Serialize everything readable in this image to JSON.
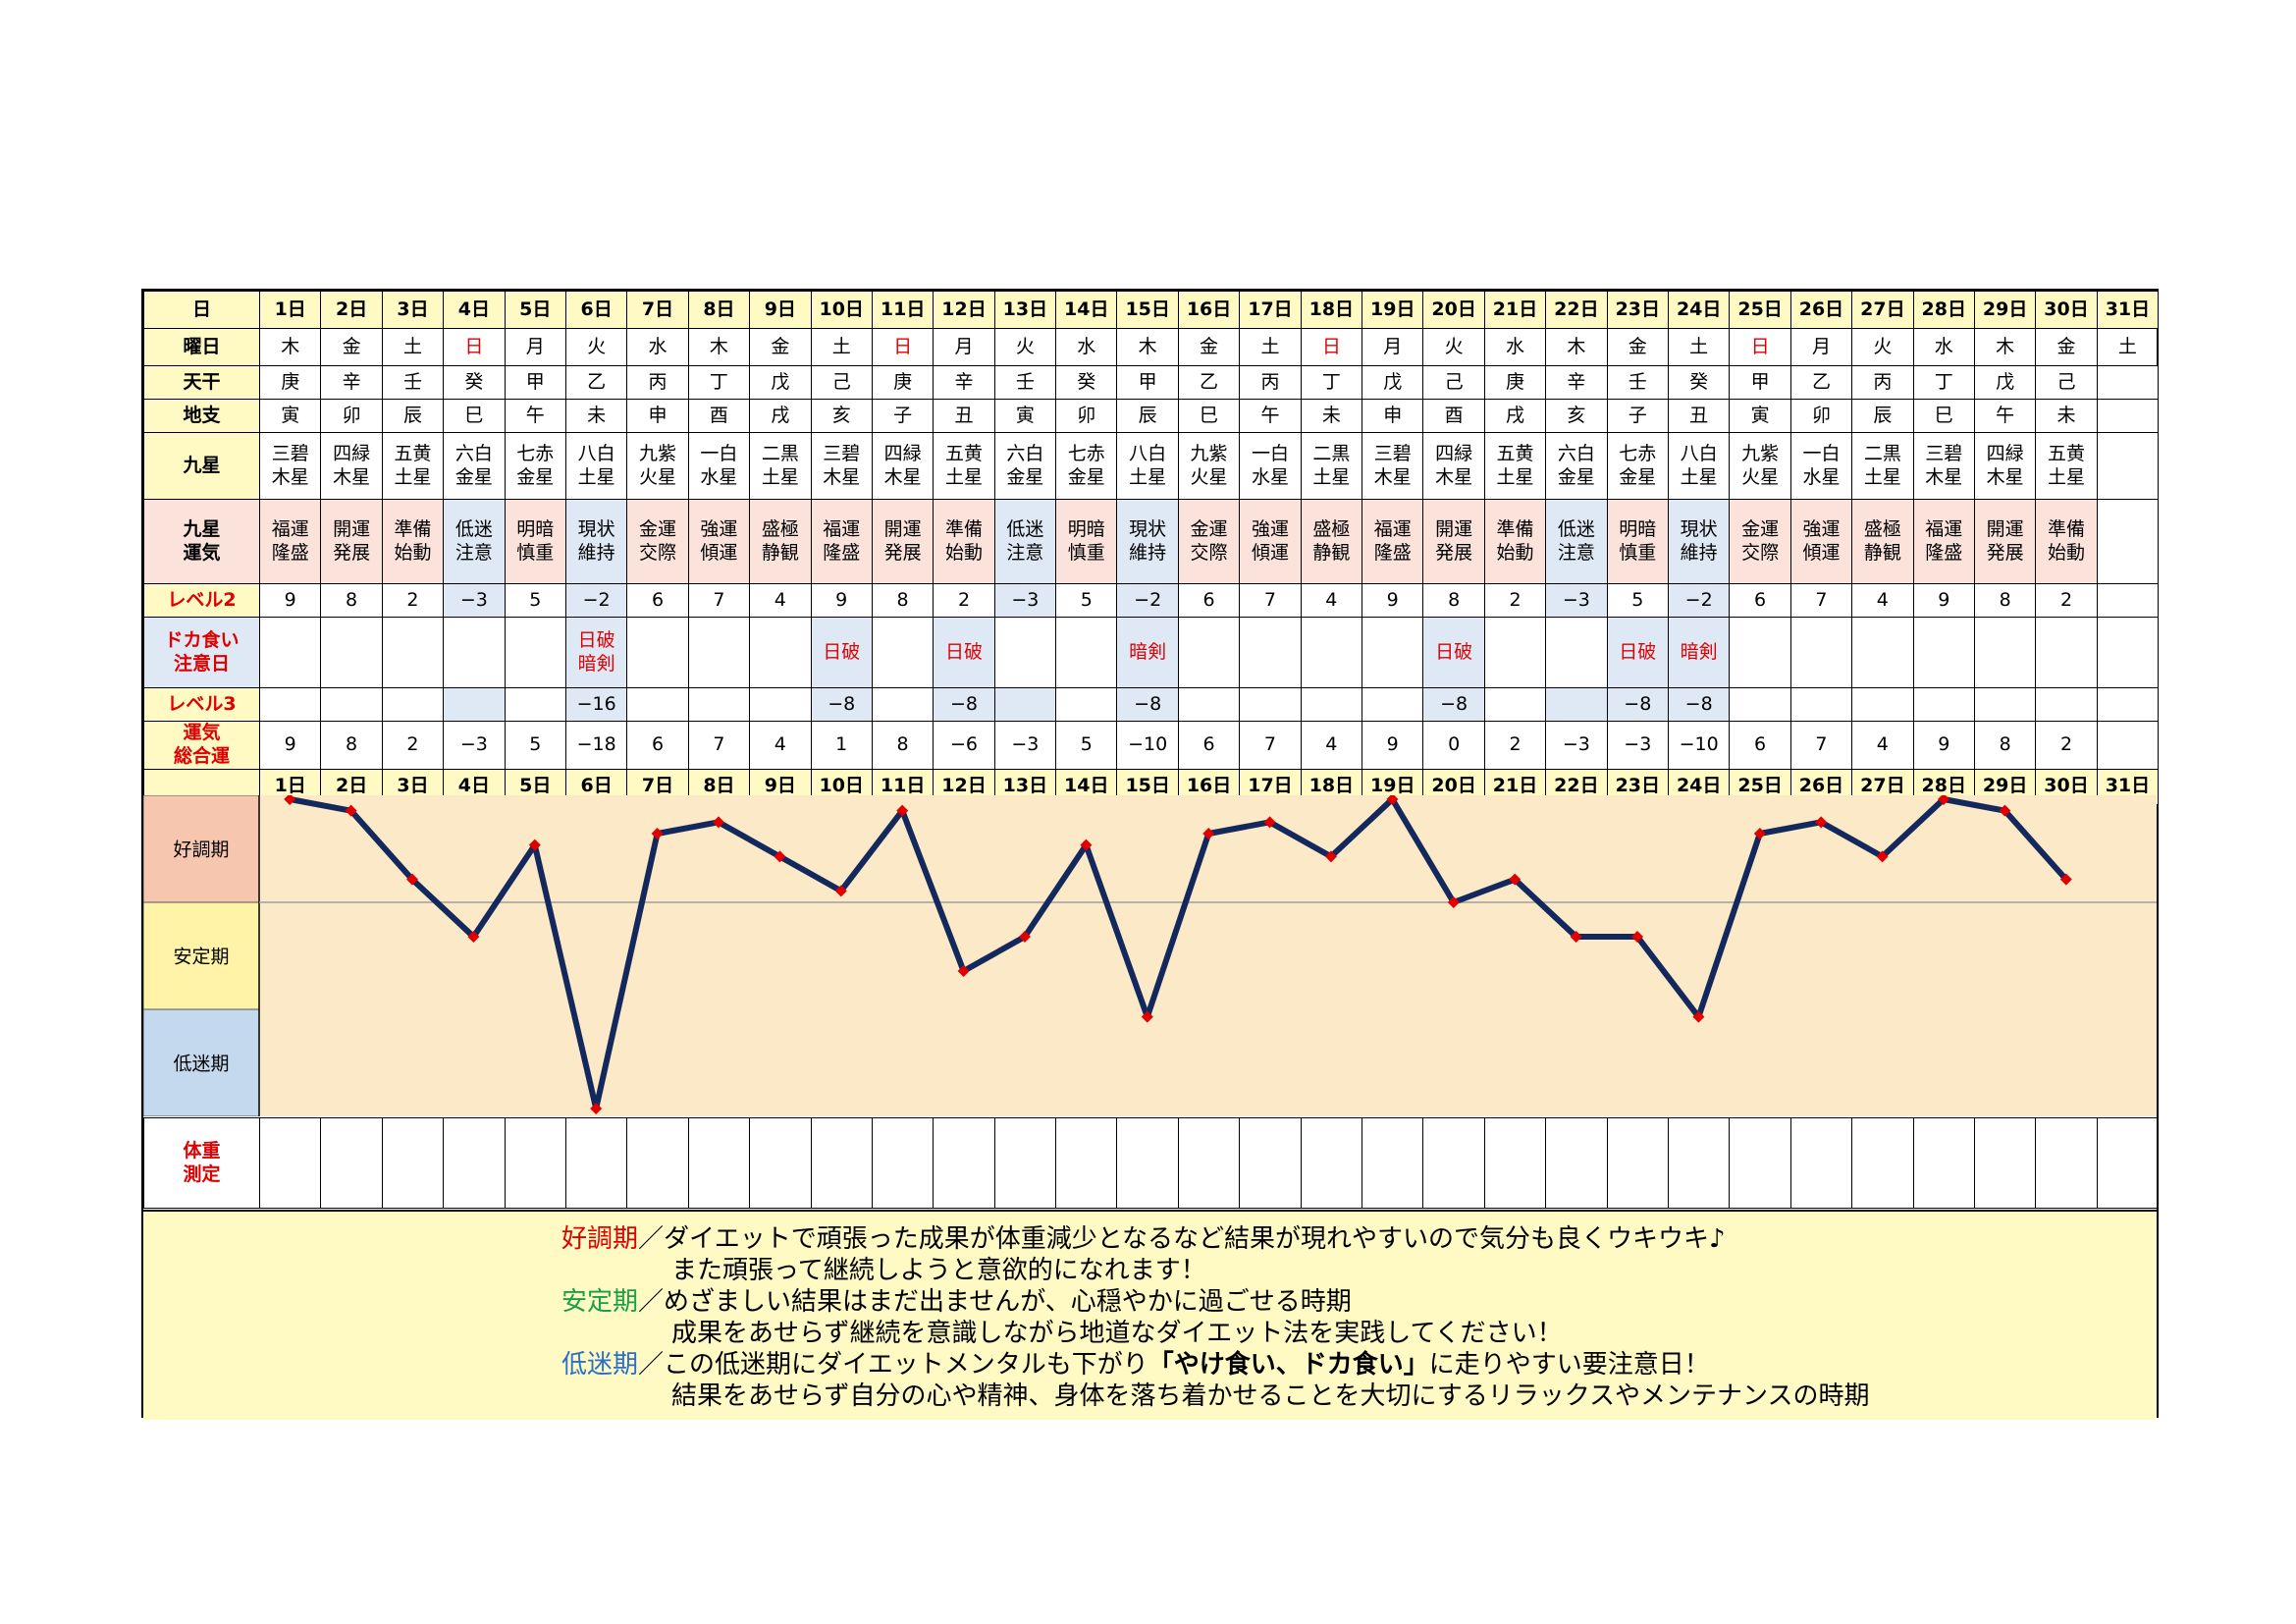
{
  "header": {
    "day_label": "日",
    "weekday_label": "曜日",
    "tenkan_label": "天干",
    "chishi_label": "地支",
    "kyusei_label": "九星",
    "unki_label": "九星\n運気",
    "level2_label": "レベル2",
    "doka_label": "ドカ食い\n注意日",
    "level3_label": "レベル3",
    "total_label": "運気\n総合運",
    "weight_label": "体重\n測定"
  },
  "days": [
    "1日",
    "2日",
    "3日",
    "4日",
    "5日",
    "6日",
    "7日",
    "8日",
    "9日",
    "10日",
    "11日",
    "12日",
    "13日",
    "14日",
    "15日",
    "16日",
    "17日",
    "18日",
    "19日",
    "20日",
    "21日",
    "22日",
    "23日",
    "24日",
    "25日",
    "26日",
    "27日",
    "28日",
    "29日",
    "30日",
    "31日"
  ],
  "weekdays": [
    "木",
    "金",
    "土",
    "日",
    "月",
    "火",
    "水",
    "木",
    "金",
    "土",
    "日",
    "月",
    "火",
    "水",
    "木",
    "金",
    "土",
    "日",
    "月",
    "火",
    "水",
    "木",
    "金",
    "土",
    "日",
    "月",
    "火",
    "水",
    "木",
    "金",
    "土"
  ],
  "tenkan": [
    "庚",
    "辛",
    "壬",
    "癸",
    "甲",
    "乙",
    "丙",
    "丁",
    "戊",
    "己",
    "庚",
    "辛",
    "壬",
    "癸",
    "甲",
    "乙",
    "丙",
    "丁",
    "戊",
    "己",
    "庚",
    "辛",
    "壬",
    "癸",
    "甲",
    "乙",
    "丙",
    "丁",
    "戊",
    "己",
    ""
  ],
  "chishi": [
    "寅",
    "卯",
    "辰",
    "巳",
    "午",
    "未",
    "申",
    "酉",
    "戌",
    "亥",
    "子",
    "丑",
    "寅",
    "卯",
    "辰",
    "巳",
    "午",
    "未",
    "申",
    "酉",
    "戌",
    "亥",
    "子",
    "丑",
    "寅",
    "卯",
    "辰",
    "巳",
    "午",
    "未",
    ""
  ],
  "kyusei": [
    "三碧\n木星",
    "四緑\n木星",
    "五黄\n土星",
    "六白\n金星",
    "七赤\n金星",
    "八白\n土星",
    "九紫\n火星",
    "一白\n水星",
    "二黒\n土星",
    "三碧\n木星",
    "四緑\n木星",
    "五黄\n土星",
    "六白\n金星",
    "七赤\n金星",
    "八白\n土星",
    "九紫\n火星",
    "一白\n水星",
    "二黒\n土星",
    "三碧\n木星",
    "四緑\n木星",
    "五黄\n土星",
    "六白\n金星",
    "七赤\n金星",
    "八白\n土星",
    "九紫\n火星",
    "一白\n水星",
    "二黒\n土星",
    "三碧\n木星",
    "四緑\n木星",
    "五黄\n土星",
    ""
  ],
  "unki": [
    "福運\n隆盛",
    "開運\n発展",
    "準備\n始動",
    "低迷\n注意",
    "明暗\n慎重",
    "現状\n維持",
    "金運\n交際",
    "強運\n傾運",
    "盛極\n静観",
    "福運\n隆盛",
    "開運\n発展",
    "準備\n始動",
    "低迷\n注意",
    "明暗\n慎重",
    "現状\n維持",
    "金運\n交際",
    "強運\n傾運",
    "盛極\n静観",
    "福運\n隆盛",
    "開運\n発展",
    "準備\n始動",
    "低迷\n注意",
    "明暗\n慎重",
    "現状\n維持",
    "金運\n交際",
    "強運\n傾運",
    "盛極\n静観",
    "福運\n隆盛",
    "開運\n発展",
    "準備\n始動",
    ""
  ],
  "level2": [
    "9",
    "8",
    "2",
    "−3",
    "5",
    "−2",
    "6",
    "7",
    "4",
    "9",
    "8",
    "2",
    "−3",
    "5",
    "−2",
    "6",
    "7",
    "4",
    "9",
    "8",
    "2",
    "−3",
    "5",
    "−2",
    "6",
    "7",
    "4",
    "9",
    "8",
    "2",
    ""
  ],
  "doka": [
    "",
    "",
    "",
    "",
    "",
    "日破\n暗剣",
    "",
    "",
    "",
    "日破",
    "",
    "日破",
    "",
    "",
    "暗剣",
    "",
    "",
    "",
    "",
    "日破",
    "",
    "",
    "日破",
    "暗剣",
    "",
    "",
    "",
    "",
    "",
    "",
    ""
  ],
  "level3": [
    "",
    "",
    "",
    "",
    "",
    "−16",
    "",
    "",
    "",
    "−8",
    "",
    "−8",
    "",
    "",
    "−8",
    "",
    "",
    "",
    "",
    "−8",
    "",
    "",
    "−8",
    "−8",
    "",
    "",
    "",
    "",
    "",
    "",
    ""
  ],
  "total": [
    "9",
    "8",
    "2",
    "−3",
    "5",
    "−18",
    "6",
    "7",
    "4",
    "1",
    "8",
    "−6",
    "−3",
    "5",
    "−10",
    "6",
    "7",
    "4",
    "9",
    "0",
    "2",
    "−3",
    "−3",
    "−10",
    "6",
    "7",
    "4",
    "9",
    "8",
    "2",
    ""
  ],
  "chart_data": {
    "type": "line",
    "x": [
      "1日",
      "2日",
      "3日",
      "4日",
      "5日",
      "6日",
      "7日",
      "8日",
      "9日",
      "10日",
      "11日",
      "12日",
      "13日",
      "14日",
      "15日",
      "16日",
      "17日",
      "18日",
      "19日",
      "20日",
      "21日",
      "22日",
      "23日",
      "24日",
      "25日",
      "26日",
      "27日",
      "28日",
      "29日",
      "30日"
    ],
    "values": [
      9,
      8,
      2,
      -3,
      5,
      -18,
      6,
      7,
      4,
      1,
      8,
      -6,
      -3,
      5,
      -10,
      6,
      7,
      4,
      9,
      0,
      2,
      -3,
      -3,
      -10,
      6,
      7,
      4,
      9,
      8,
      2
    ],
    "ylim": [
      -18,
      9
    ],
    "bands": [
      "好調期",
      "安定期",
      "低迷期"
    ],
    "line_color": "#13295e",
    "marker_color": "#e00000"
  },
  "legend": {
    "line1_term": "好調期",
    "line1_text": "／ダイエットで頑張った成果が体重減少となるなど結果が現れやすいので気分も良くウキウキ♪",
    "line2_text": "また頑張って継続しようと意欲的になれます！",
    "line3_term": "安定期",
    "line3_text": "／めざましい結果はまだ出ませんが、心穏やかに過ごせる時期",
    "line4_text": "成果をあせらず継続を意識しながら地道なダイエット法を実践してください！",
    "line5_term": "低迷期",
    "line5_text_a": "／この低迷期にダイエットメンタルも下がり",
    "line5_em": "「やけ食い、ドカ食い」",
    "line5_text_b": "に走りやすい要注意日！",
    "line6_text": "結果をあせらず自分の心や精神、身体を落ち着かせることを大切にするリラックスやメンテナンスの時期"
  },
  "colors": {
    "yellow": "#fff9c4",
    "pink": "#fbe3dc",
    "blue": "#dfe9f6",
    "good": "#f7c6ae",
    "stable": "#fff3a8",
    "low": "#c5d9ee",
    "chart_bg": "#fbe9c7"
  }
}
